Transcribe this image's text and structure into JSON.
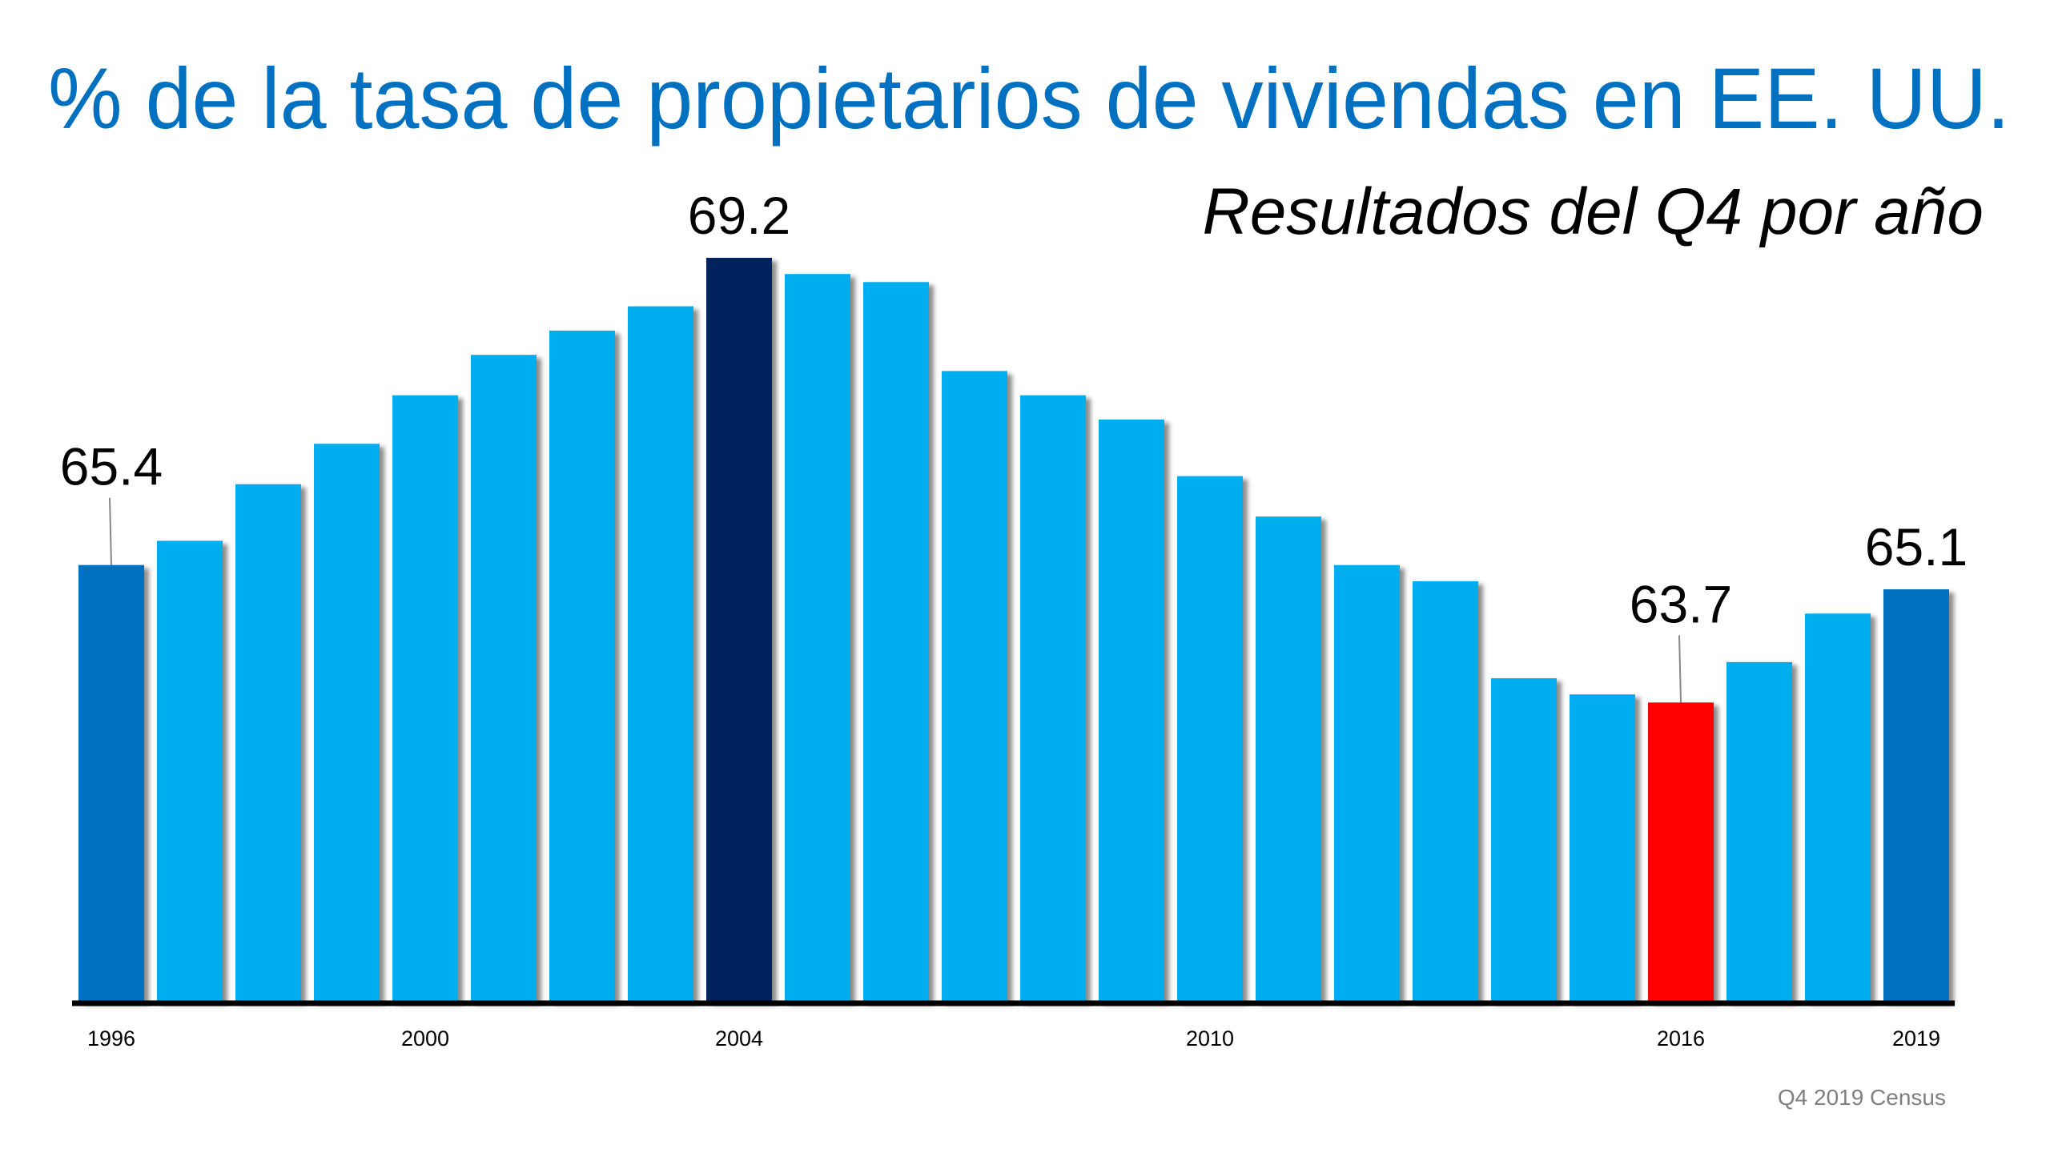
{
  "chart_data": {
    "type": "bar",
    "title": "% de la tasa de propietarios de viviendas en EE. UU.",
    "subtitle": "Resultados del Q4 por año",
    "source": "Q4 2019 Census",
    "categories": [
      "1996",
      "1997",
      "1998",
      "1999",
      "2000",
      "2001",
      "2002",
      "2003",
      "2004",
      "2005",
      "2006",
      "2007",
      "2008",
      "2009",
      "2010",
      "2011",
      "2012",
      "2013",
      "2014",
      "2015",
      "2016",
      "2017",
      "2018",
      "2019"
    ],
    "values": [
      65.4,
      65.7,
      66.4,
      66.9,
      67.5,
      68.0,
      68.3,
      68.6,
      69.2,
      69.0,
      68.9,
      67.8,
      67.5,
      67.2,
      66.5,
      66.0,
      65.4,
      65.2,
      64.0,
      63.8,
      63.7,
      64.2,
      64.8,
      65.1
    ],
    "tick_labels": [
      "1996",
      "2000",
      "2004",
      "2010",
      "2016",
      "2019"
    ],
    "data_labels": [
      {
        "category": "1996",
        "text": "65.4"
      },
      {
        "category": "2004",
        "text": "69.2"
      },
      {
        "category": "2016",
        "text": "63.7"
      },
      {
        "category": "2019",
        "text": "65.1"
      }
    ],
    "ylim": [
      60,
      69.2
    ],
    "grid": false,
    "colors": {
      "default": "#00AEEF",
      "highlight_start_end": "#0070C0",
      "peak": "#002060",
      "low": "#FF0000",
      "title": "#0070C0"
    },
    "bar_colors": {
      "1996": "#0070C0",
      "2004": "#002060",
      "2016": "#FF0000",
      "2019": "#0070C0"
    }
  }
}
